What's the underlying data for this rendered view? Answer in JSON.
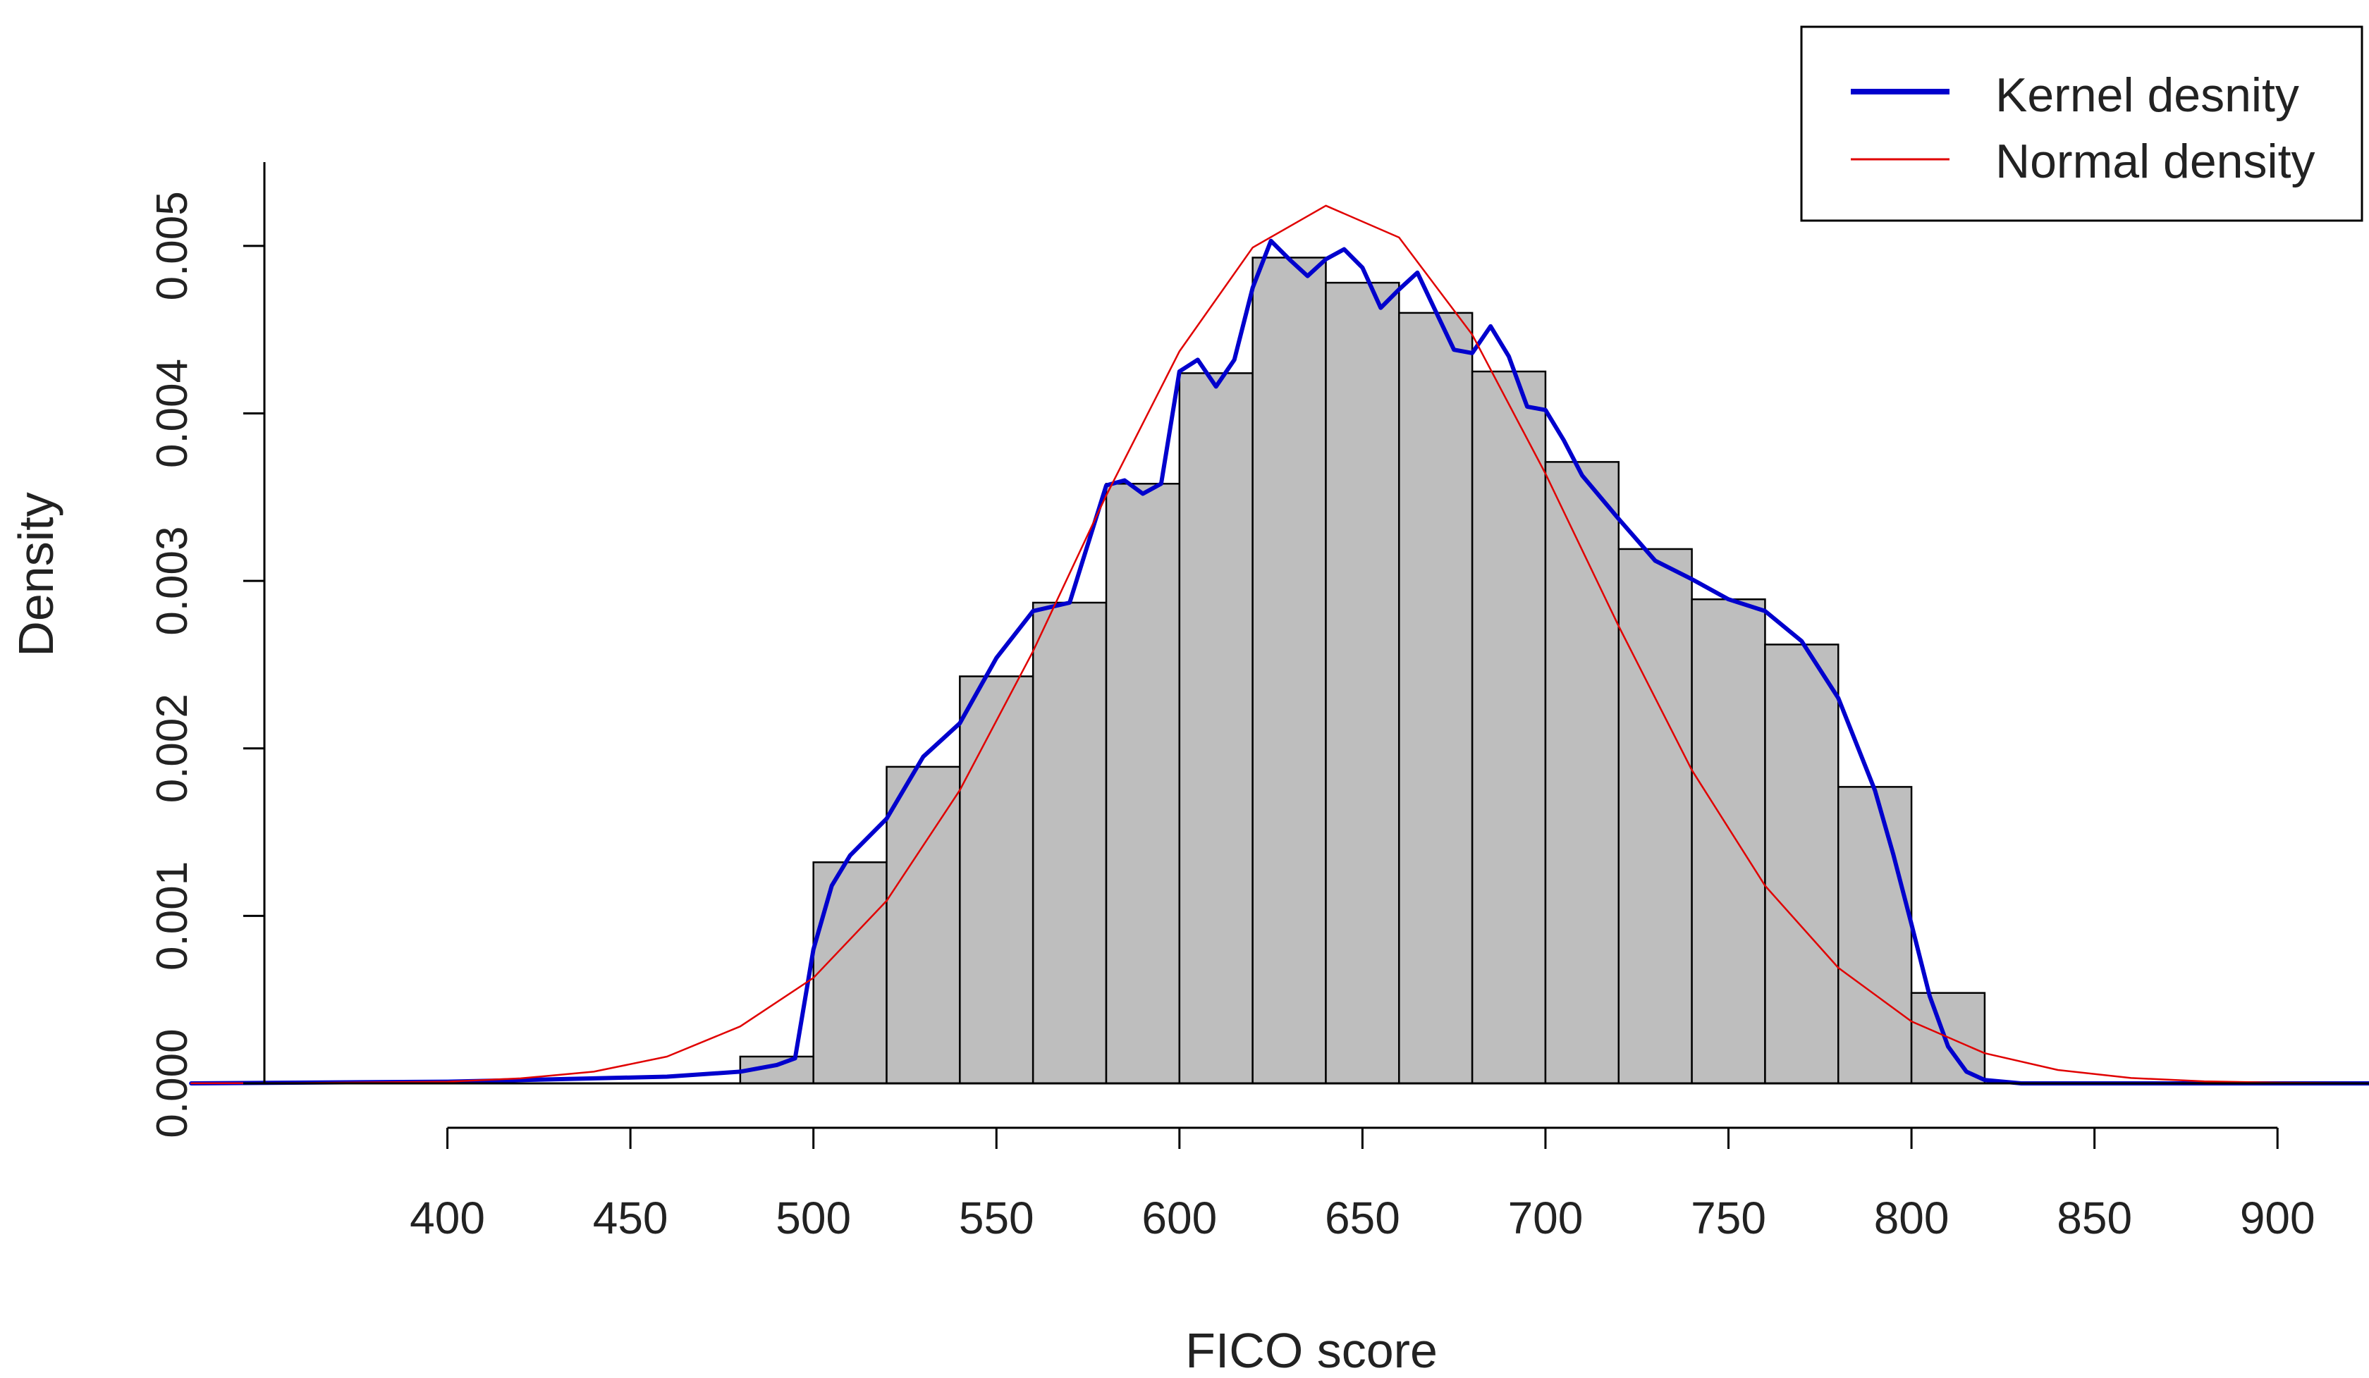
{
  "chart_data": {
    "type": "histogram",
    "title": "",
    "xlabel": "FICO score",
    "ylabel": "Density",
    "xlim": [
      350,
      925
    ],
    "ylim": [
      0,
      0.0055
    ],
    "x_ticks": [
      400,
      450,
      500,
      550,
      600,
      650,
      700,
      750,
      800,
      850,
      900
    ],
    "x_tick_labels": [
      "400",
      "450",
      "500",
      "550",
      "600",
      "650",
      "700",
      "750",
      "800",
      "850",
      "900"
    ],
    "y_ticks": [
      0.0,
      0.001,
      0.002,
      0.003,
      0.004,
      0.005
    ],
    "y_tick_labels": [
      "0.000",
      "0.001",
      "0.002",
      "0.003",
      "0.004",
      "0.005"
    ],
    "bins": [
      {
        "x0": 480,
        "x1": 500,
        "value": 0.00016
      },
      {
        "x0": 500,
        "x1": 520,
        "value": 0.00132
      },
      {
        "x0": 520,
        "x1": 540,
        "value": 0.00189
      },
      {
        "x0": 540,
        "x1": 560,
        "value": 0.00243
      },
      {
        "x0": 560,
        "x1": 580,
        "value": 0.00287
      },
      {
        "x0": 580,
        "x1": 600,
        "value": 0.00358
      },
      {
        "x0": 600,
        "x1": 620,
        "value": 0.00424
      },
      {
        "x0": 620,
        "x1": 640,
        "value": 0.00493
      },
      {
        "x0": 640,
        "x1": 660,
        "value": 0.00478
      },
      {
        "x0": 660,
        "x1": 680,
        "value": 0.0046
      },
      {
        "x0": 680,
        "x1": 700,
        "value": 0.00425
      },
      {
        "x0": 700,
        "x1": 720,
        "value": 0.00371
      },
      {
        "x0": 720,
        "x1": 740,
        "value": 0.00319
      },
      {
        "x0": 740,
        "x1": 760,
        "value": 0.00289
      },
      {
        "x0": 760,
        "x1": 780,
        "value": 0.00262
      },
      {
        "x0": 780,
        "x1": 800,
        "value": 0.00177
      },
      {
        "x0": 800,
        "x1": 820,
        "value": 0.00054
      }
    ],
    "series": [
      {
        "name": "Kernel desnity",
        "color": "#0000cd",
        "x": [
          330,
          400,
          440,
          460,
          480,
          490,
          495,
          500,
          505,
          510,
          520,
          530,
          540,
          550,
          560,
          570,
          580,
          585,
          590,
          595,
          600,
          605,
          610,
          615,
          620,
          625,
          630,
          635,
          640,
          645,
          650,
          655,
          660,
          665,
          670,
          675,
          680,
          685,
          690,
          695,
          700,
          705,
          710,
          720,
          730,
          740,
          750,
          760,
          770,
          780,
          790,
          795,
          800,
          805,
          810,
          815,
          820,
          830,
          860,
          925
        ],
        "y": [
          0.0,
          1e-05,
          3e-05,
          4e-05,
          7e-05,
          0.00011,
          0.00015,
          0.0008,
          0.00118,
          0.00136,
          0.00158,
          0.00195,
          0.00215,
          0.00254,
          0.00282,
          0.00287,
          0.00357,
          0.0036,
          0.00352,
          0.00358,
          0.00425,
          0.00432,
          0.00416,
          0.00432,
          0.00475,
          0.00503,
          0.00492,
          0.00482,
          0.00492,
          0.00498,
          0.00487,
          0.00463,
          0.00474,
          0.00484,
          0.00461,
          0.00438,
          0.00436,
          0.00452,
          0.00434,
          0.00404,
          0.00402,
          0.00384,
          0.00363,
          0.00337,
          0.00312,
          0.00301,
          0.00289,
          0.00282,
          0.00264,
          0.0023,
          0.00175,
          0.00137,
          0.00095,
          0.00052,
          0.00022,
          7e-05,
          2e-05,
          0.0,
          0.0,
          0.0
        ]
      },
      {
        "name": "Normal density",
        "color": "#e00000",
        "x": [
          330,
          360,
          400,
          420,
          440,
          460,
          480,
          500,
          520,
          540,
          560,
          580,
          600,
          620,
          640,
          660,
          680,
          700,
          720,
          740,
          760,
          780,
          800,
          820,
          840,
          860,
          880,
          900,
          925
        ],
        "y": [
          5e-07,
          2e-06,
          1e-05,
          3e-05,
          7e-05,
          0.00016,
          0.00034,
          0.00063,
          0.00109,
          0.00175,
          0.00258,
          0.00351,
          0.00437,
          0.00499,
          0.00524,
          0.00505,
          0.00447,
          0.00364,
          0.00273,
          0.00187,
          0.00118,
          0.00069,
          0.00037,
          0.00018,
          8e-05,
          3.2e-05,
          1.2e-05,
          4e-06,
          1e-06
        ]
      }
    ],
    "legend": {
      "position": "top-right",
      "entries": [
        {
          "label": "Kernel desnity",
          "color": "#0000cd"
        },
        {
          "label": "Normal density",
          "color": "#e00000"
        }
      ]
    }
  }
}
